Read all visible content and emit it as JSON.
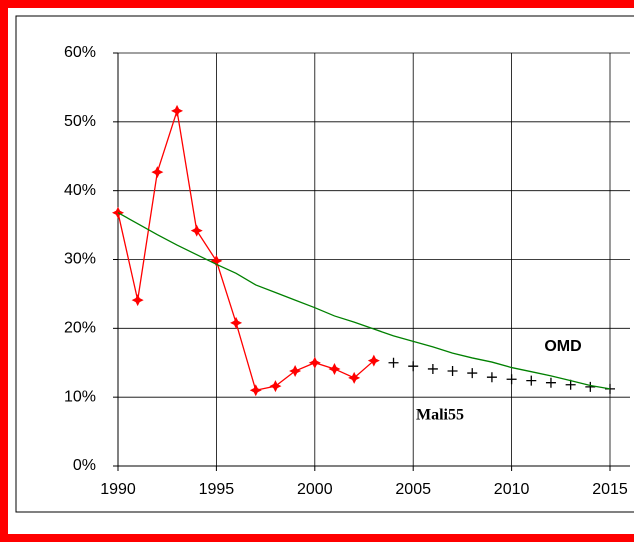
{
  "chart_data": {
    "type": "line",
    "x": [
      1990,
      1991,
      1992,
      1993,
      1994,
      1995,
      1996,
      1997,
      1998,
      1999,
      2000,
      2001,
      2002,
      2003,
      2004,
      2005,
      2006,
      2007,
      2008,
      2009,
      2010,
      2011,
      2012,
      2013,
      2014,
      2015
    ],
    "series": [
      {
        "color": "#ff0000",
        "marker": "star",
        "values": [
          36.8,
          24.1,
          42.7,
          51.6,
          34.2,
          29.8,
          20.8,
          11.0,
          11.6,
          13.8,
          15.0,
          14.1,
          12.8,
          15.3,
          null,
          null,
          null,
          null,
          null,
          null,
          null,
          null,
          null,
          null,
          null,
          null
        ]
      },
      {
        "name": "Mali55",
        "color": "#000000",
        "marker": "plus",
        "values": [
          null,
          null,
          null,
          null,
          null,
          null,
          null,
          null,
          null,
          null,
          null,
          null,
          null,
          null,
          15.0,
          14.5,
          14.1,
          13.8,
          13.5,
          12.9,
          12.6,
          12.4,
          12.1,
          11.8,
          11.5,
          11.2
        ]
      },
      {
        "name": "OMD",
        "color": "#008000",
        "marker": "none",
        "values": [
          36.8,
          35.2,
          33.6,
          32.1,
          30.7,
          29.3,
          28.0,
          26.3,
          25.2,
          24.1,
          23.0,
          21.8,
          20.9,
          19.9,
          18.9,
          18.1,
          17.3,
          16.4,
          15.7,
          15.1,
          14.3,
          13.7,
          13.1,
          12.4,
          11.7,
          11.2
        ]
      }
    ],
    "xlim": [
      1990,
      2015
    ],
    "xticks": [
      1990,
      1995,
      2000,
      2005,
      2010,
      2015
    ],
    "ylim": [
      0,
      60
    ],
    "yticks": [
      {
        "value": 0,
        "label": "0%"
      },
      {
        "value": 10,
        "label": "10%"
      },
      {
        "value": 20,
        "label": "20%"
      },
      {
        "value": 30,
        "label": "30%"
      },
      {
        "value": 40,
        "label": "40%"
      },
      {
        "value": 50,
        "label": "50%"
      },
      {
        "value": 60,
        "label": "60%"
      }
    ],
    "grid": true
  }
}
